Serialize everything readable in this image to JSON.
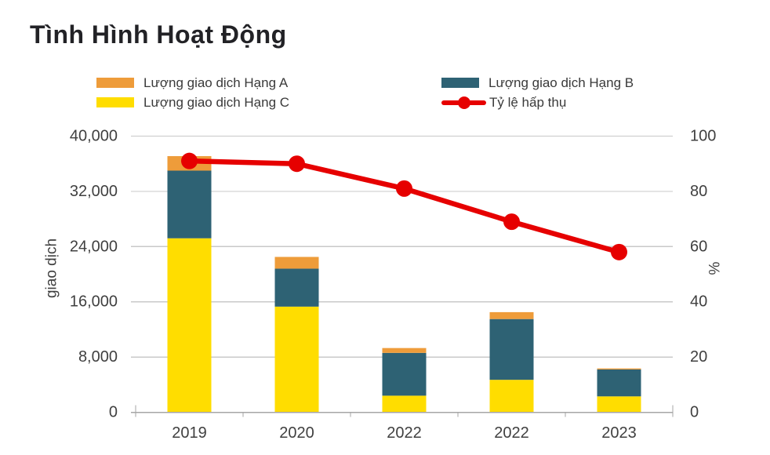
{
  "title": "Tình Hình Hoạt Động",
  "chart_data": {
    "type": "bar",
    "subtype": "stacked-bar-with-line",
    "categories": [
      "2019",
      "2020",
      "2022",
      "2022",
      "2023"
    ],
    "bar_series": [
      {
        "name": "Lượng giao dịch Hạng C",
        "color": "#FFDD00",
        "values": [
          25200,
          15300,
          2400,
          4700,
          2300
        ]
      },
      {
        "name": "Lượng giao dịch Hạng B",
        "color": "#2E6274",
        "values": [
          9800,
          5500,
          6200,
          8800,
          3900
        ]
      },
      {
        "name": "Lượng giao dịch Hạng A",
        "color": "#EE9C3A",
        "values": [
          2100,
          1700,
          700,
          1000,
          150
        ]
      }
    ],
    "line_series": {
      "name": "Tỷ lệ hấp thụ",
      "color": "#E60000",
      "values": [
        91,
        90,
        81,
        69,
        58
      ]
    },
    "left_axis": {
      "title": "giao dịch",
      "min": 0,
      "max": 40000,
      "tick_values": [
        0,
        8000,
        16000,
        24000,
        32000,
        40000
      ],
      "tick_labels": [
        "0",
        "8,000",
        "16,000",
        "24,000",
        "32,000",
        "40,000"
      ]
    },
    "right_axis": {
      "title": "%",
      "min": 0,
      "max": 100,
      "tick_values": [
        0,
        20,
        40,
        60,
        80,
        100
      ],
      "tick_labels": [
        "0",
        "20",
        "40",
        "60",
        "80",
        "100"
      ]
    },
    "grid": true,
    "legend_position": "top",
    "colors": {
      "gridline": "#C9C9C9",
      "axis_line": "#A6A6A6",
      "tick_label": "#404040"
    }
  }
}
